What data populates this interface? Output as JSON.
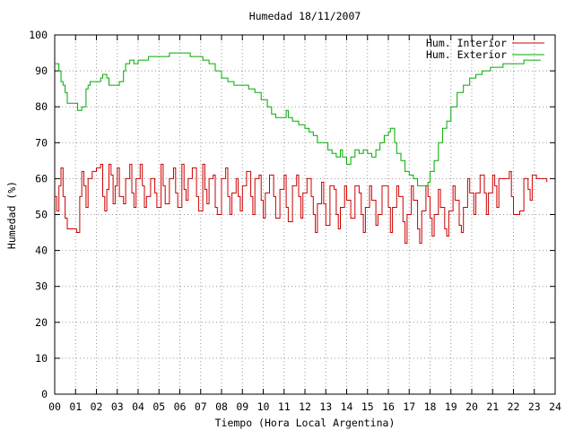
{
  "chart_data": {
    "type": "line",
    "title": "Humedad 18/11/2007",
    "xlabel": "Tiempo (Hora Local Argentina)",
    "ylabel": "Humedad (%)",
    "xlim": [
      0,
      24
    ],
    "ylim": [
      0,
      100
    ],
    "grid": true,
    "legend_position": "top-right",
    "x_ticks": [
      "00",
      "01",
      "02",
      "03",
      "04",
      "05",
      "06",
      "07",
      "08",
      "09",
      "10",
      "11",
      "12",
      "13",
      "14",
      "15",
      "16",
      "17",
      "18",
      "19",
      "20",
      "21",
      "22",
      "23",
      "24"
    ],
    "y_ticks": [
      "0",
      "10",
      "20",
      "30",
      "40",
      "50",
      "60",
      "70",
      "80",
      "90",
      "100"
    ],
    "series": [
      {
        "name": "Hum. Interior",
        "color": "#cc0000",
        "points": [
          [
            0.0,
            55
          ],
          [
            0.1,
            51
          ],
          [
            0.2,
            58
          ],
          [
            0.3,
            63
          ],
          [
            0.4,
            55
          ],
          [
            0.5,
            49
          ],
          [
            0.6,
            46
          ],
          [
            0.8,
            46
          ],
          [
            1.0,
            46
          ],
          [
            1.05,
            45
          ],
          [
            1.2,
            55
          ],
          [
            1.3,
            62
          ],
          [
            1.4,
            58
          ],
          [
            1.5,
            52
          ],
          [
            1.6,
            60
          ],
          [
            1.8,
            62
          ],
          [
            2.0,
            63
          ],
          [
            2.2,
            64
          ],
          [
            2.3,
            55
          ],
          [
            2.4,
            51
          ],
          [
            2.5,
            57
          ],
          [
            2.6,
            64
          ],
          [
            2.7,
            61
          ],
          [
            2.8,
            53
          ],
          [
            2.9,
            58
          ],
          [
            3.0,
            63
          ],
          [
            3.1,
            55
          ],
          [
            3.3,
            53
          ],
          [
            3.4,
            60
          ],
          [
            3.6,
            64
          ],
          [
            3.7,
            56
          ],
          [
            3.8,
            52
          ],
          [
            3.9,
            60
          ],
          [
            4.1,
            64
          ],
          [
            4.2,
            58
          ],
          [
            4.3,
            52
          ],
          [
            4.4,
            55
          ],
          [
            4.6,
            60
          ],
          [
            4.8,
            56
          ],
          [
            4.9,
            52
          ],
          [
            5.1,
            64
          ],
          [
            5.2,
            58
          ],
          [
            5.3,
            53
          ],
          [
            5.5,
            60
          ],
          [
            5.7,
            63
          ],
          [
            5.8,
            56
          ],
          [
            5.9,
            52
          ],
          [
            6.1,
            64
          ],
          [
            6.2,
            57
          ],
          [
            6.3,
            54
          ],
          [
            6.4,
            60
          ],
          [
            6.6,
            63
          ],
          [
            6.8,
            55
          ],
          [
            6.9,
            51
          ],
          [
            7.1,
            64
          ],
          [
            7.2,
            57
          ],
          [
            7.3,
            53
          ],
          [
            7.4,
            60
          ],
          [
            7.6,
            61
          ],
          [
            7.7,
            52
          ],
          [
            7.8,
            50
          ],
          [
            8.0,
            60
          ],
          [
            8.2,
            63
          ],
          [
            8.3,
            55
          ],
          [
            8.4,
            50
          ],
          [
            8.5,
            56
          ],
          [
            8.7,
            60
          ],
          [
            8.8,
            55
          ],
          [
            8.9,
            51
          ],
          [
            9.0,
            58
          ],
          [
            9.2,
            62
          ],
          [
            9.4,
            55
          ],
          [
            9.5,
            50
          ],
          [
            9.6,
            60
          ],
          [
            9.8,
            61
          ],
          [
            9.9,
            54
          ],
          [
            10.0,
            49
          ],
          [
            10.1,
            56
          ],
          [
            10.3,
            61
          ],
          [
            10.5,
            55
          ],
          [
            10.6,
            49
          ],
          [
            10.8,
            57
          ],
          [
            11.0,
            61
          ],
          [
            11.1,
            52
          ],
          [
            11.2,
            48
          ],
          [
            11.4,
            58
          ],
          [
            11.6,
            61
          ],
          [
            11.7,
            55
          ],
          [
            11.8,
            49
          ],
          [
            11.9,
            56
          ],
          [
            12.1,
            60
          ],
          [
            12.3,
            55
          ],
          [
            12.4,
            50
          ],
          [
            12.5,
            45
          ],
          [
            12.6,
            53
          ],
          [
            12.8,
            59
          ],
          [
            12.9,
            53
          ],
          [
            13.0,
            47
          ],
          [
            13.2,
            58
          ],
          [
            13.4,
            57
          ],
          [
            13.5,
            50
          ],
          [
            13.6,
            46
          ],
          [
            13.7,
            52
          ],
          [
            13.9,
            58
          ],
          [
            14.0,
            54
          ],
          [
            14.2,
            49
          ],
          [
            14.4,
            58
          ],
          [
            14.6,
            56
          ],
          [
            14.7,
            50
          ],
          [
            14.8,
            45
          ],
          [
            14.9,
            52
          ],
          [
            15.1,
            58
          ],
          [
            15.2,
            54
          ],
          [
            15.4,
            47
          ],
          [
            15.5,
            50
          ],
          [
            15.7,
            58
          ],
          [
            15.9,
            58
          ],
          [
            16.0,
            52
          ],
          [
            16.1,
            45
          ],
          [
            16.2,
            52
          ],
          [
            16.4,
            58
          ],
          [
            16.5,
            55
          ],
          [
            16.7,
            48
          ],
          [
            16.8,
            42
          ],
          [
            16.9,
            50
          ],
          [
            17.1,
            58
          ],
          [
            17.2,
            54
          ],
          [
            17.4,
            46
          ],
          [
            17.5,
            42
          ],
          [
            17.6,
            51
          ],
          [
            17.8,
            58
          ],
          [
            17.9,
            55
          ],
          [
            18.0,
            49
          ],
          [
            18.1,
            44
          ],
          [
            18.2,
            50
          ],
          [
            18.4,
            57
          ],
          [
            18.5,
            52
          ],
          [
            18.7,
            46
          ],
          [
            18.8,
            44
          ],
          [
            18.9,
            51
          ],
          [
            19.1,
            58
          ],
          [
            19.2,
            54
          ],
          [
            19.4,
            47
          ],
          [
            19.5,
            45
          ],
          [
            19.6,
            52
          ],
          [
            19.8,
            60
          ],
          [
            19.9,
            56
          ],
          [
            20.1,
            50
          ],
          [
            20.2,
            56
          ],
          [
            20.4,
            61
          ],
          [
            20.6,
            56
          ],
          [
            20.7,
            50
          ],
          [
            20.8,
            56
          ],
          [
            21.0,
            61
          ],
          [
            21.1,
            58
          ],
          [
            21.2,
            52
          ],
          [
            21.3,
            60
          ],
          [
            21.6,
            60
          ],
          [
            21.8,
            62
          ],
          [
            21.9,
            55
          ],
          [
            22.0,
            50
          ],
          [
            22.3,
            51
          ],
          [
            22.5,
            60
          ],
          [
            22.7,
            57
          ],
          [
            22.8,
            54
          ],
          [
            22.9,
            61
          ],
          [
            23.1,
            60
          ],
          [
            23.3,
            60
          ],
          [
            23.6,
            59
          ]
        ]
      },
      {
        "name": "Hum. Exterior",
        "color": "#00aa00",
        "points": [
          [
            0.0,
            92
          ],
          [
            0.2,
            90
          ],
          [
            0.3,
            87
          ],
          [
            0.4,
            86
          ],
          [
            0.5,
            84
          ],
          [
            0.6,
            81
          ],
          [
            1.0,
            81
          ],
          [
            1.1,
            79
          ],
          [
            1.3,
            80
          ],
          [
            1.5,
            85
          ],
          [
            1.6,
            86
          ],
          [
            1.7,
            87
          ],
          [
            2.0,
            87
          ],
          [
            2.2,
            88
          ],
          [
            2.3,
            89
          ],
          [
            2.5,
            88
          ],
          [
            2.6,
            86
          ],
          [
            2.8,
            86
          ],
          [
            3.1,
            87
          ],
          [
            3.3,
            90
          ],
          [
            3.4,
            92
          ],
          [
            3.6,
            93
          ],
          [
            3.8,
            92
          ],
          [
            4.0,
            93
          ],
          [
            4.5,
            94
          ],
          [
            5.0,
            94
          ],
          [
            5.5,
            95
          ],
          [
            6.0,
            95
          ],
          [
            6.3,
            95
          ],
          [
            6.5,
            94
          ],
          [
            6.8,
            94
          ],
          [
            7.1,
            93
          ],
          [
            7.4,
            92
          ],
          [
            7.7,
            90
          ],
          [
            8.0,
            88
          ],
          [
            8.3,
            87
          ],
          [
            8.6,
            86
          ],
          [
            9.0,
            86
          ],
          [
            9.3,
            85
          ],
          [
            9.6,
            84
          ],
          [
            9.9,
            82
          ],
          [
            10.2,
            80
          ],
          [
            10.4,
            78
          ],
          [
            10.6,
            77
          ],
          [
            10.9,
            77
          ],
          [
            11.1,
            79
          ],
          [
            11.2,
            77
          ],
          [
            11.4,
            76
          ],
          [
            11.7,
            75
          ],
          [
            12.0,
            74
          ],
          [
            12.2,
            73
          ],
          [
            12.4,
            72
          ],
          [
            12.6,
            70
          ],
          [
            12.9,
            70
          ],
          [
            13.1,
            68
          ],
          [
            13.3,
            67
          ],
          [
            13.5,
            66
          ],
          [
            13.7,
            68
          ],
          [
            13.8,
            66
          ],
          [
            14.0,
            64
          ],
          [
            14.2,
            66
          ],
          [
            14.4,
            68
          ],
          [
            14.6,
            67
          ],
          [
            14.8,
            68
          ],
          [
            15.0,
            67
          ],
          [
            15.2,
            66
          ],
          [
            15.4,
            68
          ],
          [
            15.6,
            70
          ],
          [
            15.8,
            72
          ],
          [
            16.0,
            73
          ],
          [
            16.1,
            74
          ],
          [
            16.3,
            70
          ],
          [
            16.4,
            67
          ],
          [
            16.6,
            65
          ],
          [
            16.8,
            62
          ],
          [
            17.0,
            61
          ],
          [
            17.2,
            60
          ],
          [
            17.4,
            58
          ],
          [
            17.7,
            58
          ],
          [
            17.9,
            59
          ],
          [
            18.0,
            62
          ],
          [
            18.2,
            65
          ],
          [
            18.4,
            70
          ],
          [
            18.6,
            74
          ],
          [
            18.8,
            76
          ],
          [
            19.0,
            80
          ],
          [
            19.3,
            84
          ],
          [
            19.6,
            86
          ],
          [
            19.9,
            88
          ],
          [
            20.2,
            89
          ],
          [
            20.5,
            90
          ],
          [
            20.9,
            91
          ],
          [
            21.2,
            91
          ],
          [
            21.5,
            92
          ],
          [
            22.0,
            92
          ],
          [
            22.5,
            93
          ],
          [
            23.0,
            93
          ],
          [
            23.3,
            93
          ]
        ]
      }
    ]
  }
}
